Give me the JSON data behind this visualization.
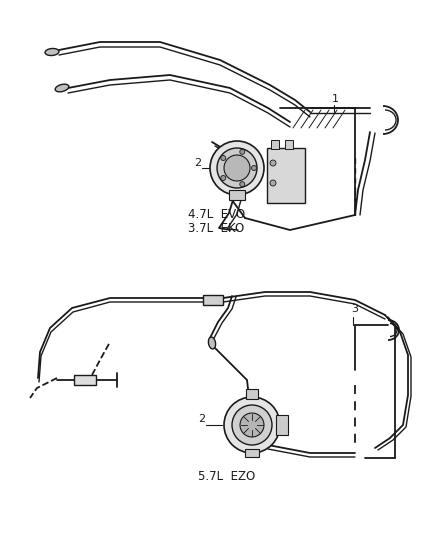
{
  "background_color": "#ffffff",
  "line_color": "#1a1a1a",
  "text_color": "#1a1a1a",
  "fig_width": 4.38,
  "fig_height": 5.33,
  "dpi": 100,
  "d1_label1": "1",
  "d1_label2": "2",
  "d1_text1": "4.7L  EVO",
  "d1_text2": "3.7L  EKO",
  "d2_label2": "2",
  "d2_label3": "3",
  "d2_text1": "5.7L  EZO"
}
